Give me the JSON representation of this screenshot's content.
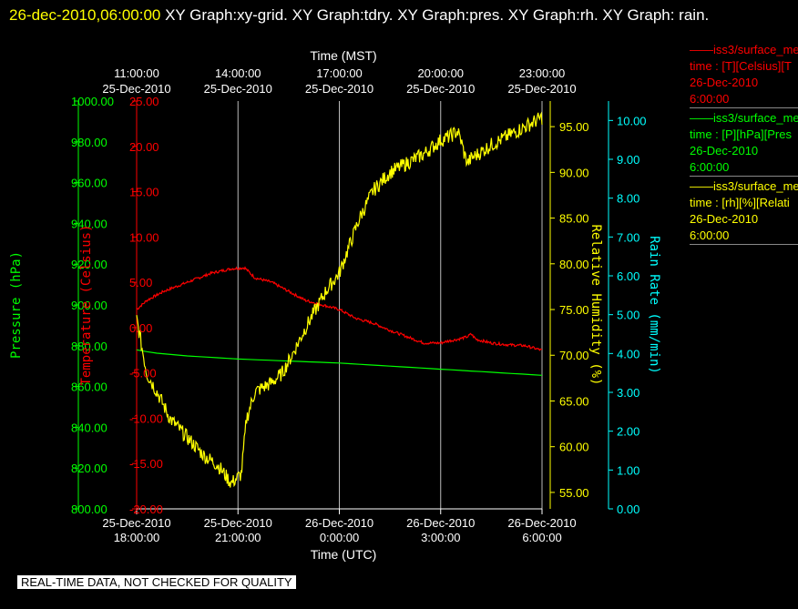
{
  "header": {
    "datetime": "26-dec-2010,06:00:00",
    "text": " XY Graph:xy-grid.  XY Graph:tdry.  XY Graph:pres.  XY Graph:rh.  XY Graph: rain."
  },
  "legend": [
    {
      "line1": "iss3/surface_me",
      "line2": "time : [T][Celsius][T",
      "line3": "26-Dec-2010",
      "line4": "6:00:00",
      "color": "#ff0000"
    },
    {
      "line1": "iss3/surface_me",
      "line2": "time : [P][hPa][Pres",
      "line3": "26-Dec-2010",
      "line4": "6:00:00",
      "color": "#00ff00"
    },
    {
      "line1": "iss3/surface_me",
      "line2": "time : [rh][%][Relati",
      "line3": "26-Dec-2010",
      "line4": "6:00:00",
      "color": "#ffff00"
    }
  ],
  "notice": "REAL-TIME DATA, NOT CHECKED FOR QUALITY",
  "chart_data": {
    "type": "line",
    "grid": true,
    "x_top": {
      "title": "Time (MST)",
      "ticks": [
        {
          "t": 0.0,
          "l1": "11:00:00",
          "l2": "25-Dec-2010"
        },
        {
          "t": 3.0,
          "l1": "14:00:00",
          "l2": "25-Dec-2010"
        },
        {
          "t": 6.0,
          "l1": "17:00:00",
          "l2": "25-Dec-2010"
        },
        {
          "t": 9.0,
          "l1": "20:00:00",
          "l2": "25-Dec-2010"
        },
        {
          "t": 12.0,
          "l1": "23:00:00",
          "l2": "25-Dec-2010"
        }
      ]
    },
    "x_bottom": {
      "title": "Time (UTC)",
      "ticks": [
        {
          "t": 0.0,
          "l1": "25-Dec-2010",
          "l2": "18:00:00"
        },
        {
          "t": 3.0,
          "l1": "25-Dec-2010",
          "l2": "21:00:00"
        },
        {
          "t": 6.0,
          "l1": "26-Dec-2010",
          "l2": "0:00:00"
        },
        {
          "t": 9.0,
          "l1": "26-Dec-2010",
          "l2": "3:00:00"
        },
        {
          "t": 12.0,
          "l1": "26-Dec-2010",
          "l2": "6:00:00"
        }
      ]
    },
    "x_range": [
      0,
      12
    ],
    "axes": [
      {
        "id": "pres",
        "label": "Pressure (hPa)",
        "color": "#00ff00",
        "range": [
          800,
          1000
        ],
        "ticks": [
          "800.00",
          "820.00",
          "840.00",
          "860.00",
          "880.00",
          "900.00",
          "920.00",
          "940.00",
          "960.00",
          "980.00",
          "1000.00"
        ]
      },
      {
        "id": "temp",
        "label": "Temperature (Celsius)",
        "color": "#ff0000",
        "range": [
          -20,
          25
        ],
        "ticks": [
          "-20.00",
          "-15.00",
          "-10.00",
          "-5.00",
          "0.00",
          "5.00",
          "10.00",
          "15.00",
          "20.00",
          "25.00"
        ]
      },
      {
        "id": "rh",
        "label": "Relative Humidity (%)",
        "color": "#ffff00",
        "range": [
          53.2,
          97.8
        ],
        "ticks": [
          "55.00",
          "60.00",
          "65.00",
          "70.00",
          "75.00",
          "80.00",
          "85.00",
          "90.00",
          "95.00"
        ]
      },
      {
        "id": "rain",
        "label": "Rain Rate (mm/min)",
        "color": "#00ffff",
        "range": [
          0,
          10.5
        ],
        "ticks": [
          "0.00",
          "1.00",
          "2.00",
          "3.00",
          "4.00",
          "5.00",
          "6.00",
          "7.00",
          "8.00",
          "9.00",
          "10.00"
        ]
      }
    ],
    "series": [
      {
        "axis": "temp",
        "color": "#ff0000",
        "noise": 0.15,
        "points": [
          [
            0,
            2.0
          ],
          [
            0.3,
            3.0
          ],
          [
            0.8,
            4.0
          ],
          [
            1.5,
            5.0
          ],
          [
            2.2,
            6.0
          ],
          [
            2.8,
            6.5
          ],
          [
            3.2,
            6.6
          ],
          [
            3.5,
            5.5
          ],
          [
            4.0,
            5.0
          ],
          [
            4.5,
            4.0
          ],
          [
            5.0,
            3.0
          ],
          [
            5.5,
            2.5
          ],
          [
            6.0,
            2.0
          ],
          [
            6.5,
            1.0
          ],
          [
            7.0,
            0.5
          ],
          [
            7.5,
            -0.3
          ],
          [
            8.0,
            -1.0
          ],
          [
            8.5,
            -1.7
          ],
          [
            8.7,
            -1.7
          ],
          [
            9.0,
            -1.7
          ],
          [
            9.2,
            -1.5
          ],
          [
            9.5,
            -1.3
          ],
          [
            9.8,
            -1.0
          ],
          [
            9.9,
            -0.7
          ],
          [
            10.05,
            -1.3
          ],
          [
            10.5,
            -1.7
          ],
          [
            11.0,
            -1.9
          ],
          [
            11.5,
            -2.0
          ],
          [
            12.0,
            -2.5
          ]
        ]
      },
      {
        "axis": "pres",
        "color": "#00ff00",
        "noise": 0,
        "points": [
          [
            0,
            878
          ],
          [
            0.5,
            876.5
          ],
          [
            1.5,
            875
          ],
          [
            3.0,
            873.5
          ],
          [
            4.5,
            872.5
          ],
          [
            6.0,
            871.5
          ],
          [
            7.5,
            870
          ],
          [
            9.0,
            868.5
          ],
          [
            10.5,
            867
          ],
          [
            12.0,
            865.5
          ]
        ]
      },
      {
        "axis": "rh",
        "color": "#ffff00",
        "noise": 0.8,
        "points": [
          [
            0,
            74
          ],
          [
            0.1,
            72
          ],
          [
            0.3,
            68
          ],
          [
            0.6,
            66
          ],
          [
            1.0,
            63
          ],
          [
            1.5,
            61
          ],
          [
            2.0,
            59
          ],
          [
            2.4,
            58
          ],
          [
            2.8,
            56
          ],
          [
            3.1,
            57
          ],
          [
            3.25,
            63
          ],
          [
            3.5,
            66
          ],
          [
            4.0,
            67
          ],
          [
            4.3,
            68
          ],
          [
            4.6,
            70
          ],
          [
            5.0,
            73
          ],
          [
            5.3,
            75
          ],
          [
            5.6,
            77
          ],
          [
            6.0,
            79
          ],
          [
            6.3,
            82
          ],
          [
            6.6,
            85
          ],
          [
            7.0,
            88
          ],
          [
            7.5,
            90
          ],
          [
            8.0,
            91
          ],
          [
            8.5,
            92
          ],
          [
            9.0,
            93.5
          ],
          [
            9.3,
            94
          ],
          [
            9.5,
            94.5
          ],
          [
            9.6,
            93.5
          ],
          [
            9.7,
            92
          ],
          [
            9.8,
            91
          ],
          [
            9.9,
            91.5
          ],
          [
            10.1,
            92
          ],
          [
            10.5,
            93
          ],
          [
            11.0,
            94
          ],
          [
            11.5,
            95
          ],
          [
            12.0,
            96
          ]
        ]
      }
    ]
  }
}
